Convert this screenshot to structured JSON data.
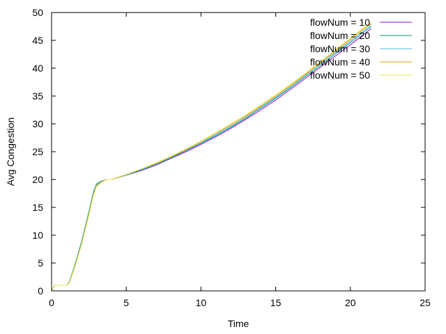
{
  "chart_data": {
    "type": "line",
    "title": "",
    "xlabel": "Time",
    "ylabel": "Avg Congestion",
    "xlim": [
      0,
      25
    ],
    "ylim": [
      0,
      50
    ],
    "xticks": [
      0,
      5,
      10,
      15,
      20,
      25
    ],
    "yticks": [
      0,
      5,
      10,
      15,
      20,
      25,
      30,
      35,
      40,
      45,
      50
    ],
    "grid": false,
    "legend_position": "top-right",
    "series": [
      {
        "name": "flowNum = 10",
        "color": "#9400d3",
        "x": [
          0,
          0.2,
          1.0,
          1.2,
          1.5,
          2.0,
          2.5,
          2.8,
          3.0,
          3.3,
          3.7,
          4.0,
          5,
          6,
          7,
          8,
          9,
          10,
          11,
          12,
          13,
          14,
          15,
          16,
          17,
          18,
          19,
          20,
          21,
          21.4
        ],
        "y": [
          0,
          1,
          1,
          1.6,
          4,
          8.5,
          14,
          17.5,
          19,
          19.6,
          20,
          20,
          20.8,
          21.6,
          22.6,
          23.8,
          25,
          26.3,
          27.7,
          29.2,
          30.8,
          32.5,
          34.3,
          36.2,
          38.2,
          40.2,
          42.2,
          44.2,
          46.3,
          47.1
        ]
      },
      {
        "name": "flowNum = 20",
        "color": "#009e73",
        "x": [
          0,
          0.2,
          1.0,
          1.2,
          1.5,
          2.0,
          2.5,
          2.8,
          3.0,
          3.3,
          3.7,
          4.0,
          5,
          6,
          7,
          8,
          9,
          10,
          11,
          12,
          13,
          14,
          15,
          16,
          17,
          18,
          19,
          20,
          21,
          21.4
        ],
        "y": [
          0,
          1,
          1,
          1.7,
          4.2,
          8.8,
          14.3,
          17.8,
          19.2,
          19.7,
          20,
          20,
          20.8,
          21.7,
          22.7,
          23.9,
          25.2,
          26.5,
          27.9,
          29.4,
          31,
          32.8,
          34.6,
          36.5,
          38.5,
          40.5,
          42.6,
          44.6,
          46.7,
          47.5
        ]
      },
      {
        "name": "flowNum = 30",
        "color": "#56b4e9",
        "x": [
          0,
          0.2,
          1.0,
          1.2,
          1.5,
          2.0,
          2.5,
          2.8,
          3.0,
          3.3,
          3.7,
          4.0,
          5,
          6,
          7,
          8,
          9,
          10,
          11,
          12,
          13,
          14,
          15,
          16,
          17,
          18,
          19,
          20,
          21,
          21.4
        ],
        "y": [
          0,
          1,
          1,
          1.6,
          4,
          8.6,
          14.1,
          17.6,
          19,
          19.6,
          20,
          20,
          20.9,
          21.8,
          22.8,
          24,
          25.3,
          26.6,
          28.1,
          29.6,
          31.2,
          33,
          34.8,
          36.7,
          38.7,
          40.8,
          42.9,
          44.9,
          47,
          47.8
        ]
      },
      {
        "name": "flowNum = 40",
        "color": "#e69f00",
        "x": [
          0,
          0.2,
          1.0,
          1.2,
          1.5,
          2.0,
          2.5,
          2.8,
          3.0,
          3.3,
          3.7,
          4.0,
          5,
          6,
          7,
          8,
          9,
          10,
          11,
          12,
          13,
          14,
          15,
          16,
          17,
          18,
          19,
          20,
          21,
          21.4
        ],
        "y": [
          0,
          1,
          1,
          1.5,
          3.9,
          8.3,
          13.8,
          17.3,
          18.8,
          19.5,
          20,
          20,
          20.9,
          21.9,
          22.9,
          24.1,
          25.4,
          26.8,
          28.3,
          29.8,
          31.4,
          33.2,
          35,
          36.9,
          38.9,
          41,
          43.1,
          45.2,
          47.3,
          48
        ]
      },
      {
        "name": "flowNum = 50",
        "color": "#f0e442",
        "x": [
          0,
          0.2,
          1.0,
          1.2,
          1.5,
          2.0,
          2.5,
          2.8,
          3.0,
          3.3,
          3.7,
          4.0,
          5,
          6,
          7,
          8,
          9,
          10,
          11,
          12,
          13,
          14,
          15,
          16,
          17,
          18,
          19,
          20,
          21,
          21.4
        ],
        "y": [
          0,
          1,
          1,
          1.5,
          3.8,
          8.2,
          13.6,
          17.1,
          18.7,
          19.4,
          20,
          20,
          20.9,
          21.9,
          23,
          24.2,
          25.5,
          26.9,
          28.4,
          30,
          31.6,
          33.4,
          35.2,
          37.1,
          39.1,
          41.2,
          43.3,
          45.4,
          47.5,
          48.2
        ]
      }
    ]
  }
}
